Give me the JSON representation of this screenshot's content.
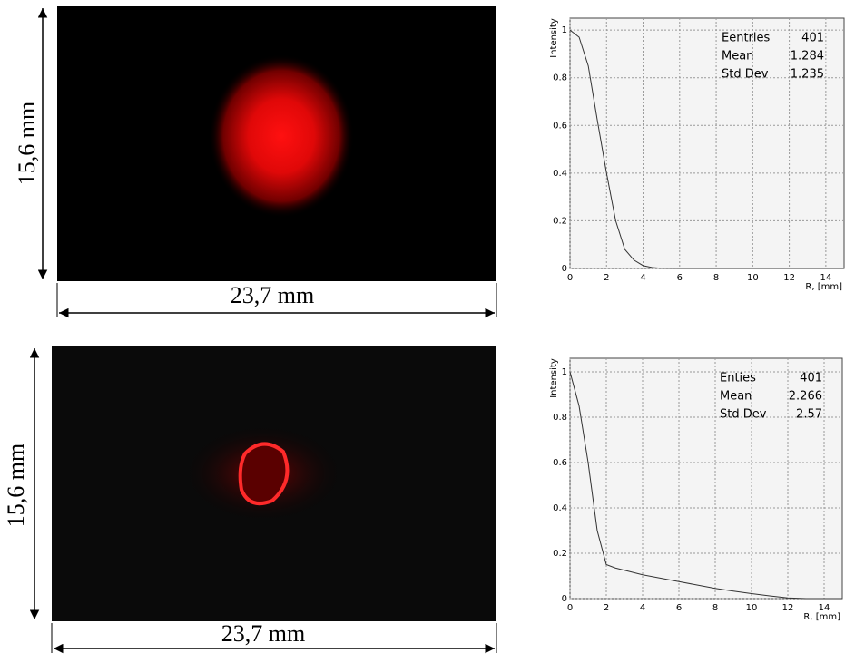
{
  "figures": [
    {
      "height_label": "15,6 mm",
      "width_label": "23,7 mm"
    },
    {
      "height_label": "15,6 mm",
      "width_label": "23,7 mm"
    }
  ],
  "chart_data": [
    {
      "type": "line",
      "ylabel": "Intensity",
      "xlabel": "R, [mm]",
      "color": "#333333",
      "x": [
        0,
        0.5,
        1,
        1.5,
        2,
        2.5,
        3,
        3.5,
        4,
        4.5,
        5,
        6,
        7,
        8,
        9,
        10,
        11,
        12,
        13,
        14,
        15
      ],
      "values": [
        1,
        0.97,
        0.85,
        0.62,
        0.4,
        0.2,
        0.08,
        0.035,
        0.012,
        0.004,
        0.001,
        0,
        0,
        0,
        0,
        0,
        0,
        0,
        0,
        0,
        0
      ],
      "xlim": [
        0,
        15
      ],
      "ylim": [
        0,
        1.05
      ],
      "xticks": [
        0,
        2,
        4,
        6,
        8,
        10,
        12,
        14
      ],
      "yticks": [
        0,
        0.2,
        0.4,
        0.6,
        0.8,
        1
      ],
      "grid": true,
      "stats": [
        {
          "label": "Eentries",
          "value": 401
        },
        {
          "label": "Mean",
          "value": 1.284
        },
        {
          "label": "Std Dev",
          "value": 1.235
        }
      ]
    },
    {
      "type": "line",
      "ylabel": "Intensity",
      "xlabel": "R, [mm]",
      "color": "#333333",
      "x": [
        0,
        0.5,
        1,
        1.5,
        2,
        2.5,
        3,
        4,
        5,
        6,
        7,
        8,
        9,
        10,
        11,
        12,
        13,
        14,
        15
      ],
      "values": [
        1,
        0.85,
        0.6,
        0.3,
        0.15,
        0.135,
        0.125,
        0.105,
        0.09,
        0.075,
        0.06,
        0.045,
        0.033,
        0.022,
        0.012,
        0.003,
        0,
        0,
        0
      ],
      "xlim": [
        0,
        15
      ],
      "ylim": [
        0,
        1.06
      ],
      "xticks": [
        0,
        2,
        4,
        6,
        8,
        10,
        12,
        14
      ],
      "yticks": [
        0,
        0.2,
        0.4,
        0.6,
        0.8,
        1
      ],
      "grid": true,
      "stats": [
        {
          "label": "Enties",
          "value": 401
        },
        {
          "label": "Mean",
          "value": 2.266
        },
        {
          "label": "Std Dev",
          "value": 2.57
        }
      ]
    }
  ]
}
